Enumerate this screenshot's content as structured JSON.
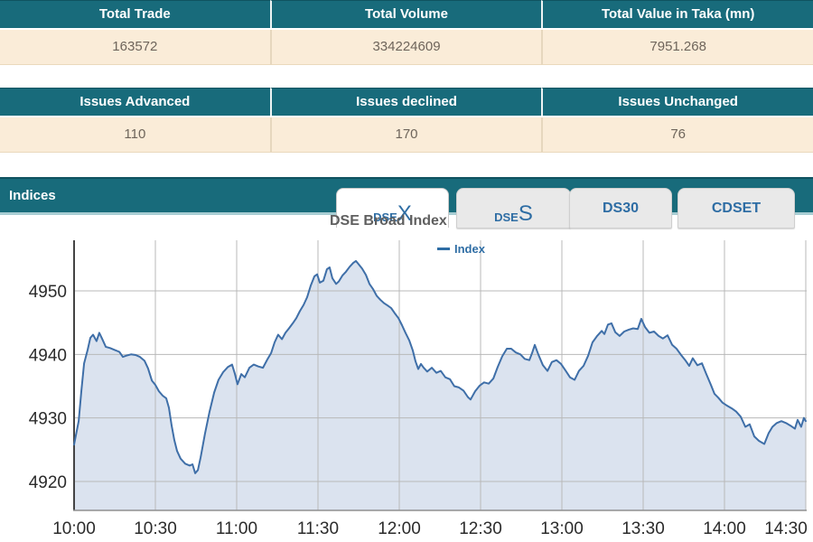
{
  "summary_table": {
    "headers": [
      "Total Trade",
      "Total Volume",
      "Total Value in Taka (mn)"
    ],
    "values": [
      "163572",
      "334224609",
      "7951.268"
    ]
  },
  "issues_table": {
    "headers": [
      "Issues Advanced",
      "Issues declined",
      "Issues Unchanged"
    ],
    "values": [
      "110",
      "170",
      "76"
    ]
  },
  "indices": {
    "title": "Indices",
    "tabs": [
      {
        "prefix": "DSE",
        "suffix": "X",
        "active": true
      },
      {
        "prefix": "DSE",
        "suffix": "S",
        "active": false
      },
      {
        "label": "DS30",
        "active": false
      },
      {
        "label": "CDSET",
        "active": false
      }
    ]
  },
  "chart_data": {
    "type": "area",
    "title": "DSE Broad Index",
    "legend": [
      "Index"
    ],
    "legend_position": "top-center",
    "grid": true,
    "xlabel": "",
    "ylabel": "",
    "x_axis": "time (10:00 - 14:30)",
    "x_ticks": [
      {
        "t": 0,
        "label": "10:00"
      },
      {
        "t": 30,
        "label": "10:30"
      },
      {
        "t": 60,
        "label": "11:00"
      },
      {
        "t": 90,
        "label": "11:30"
      },
      {
        "t": 120,
        "label": "12:00"
      },
      {
        "t": 150,
        "label": "12:30"
      },
      {
        "t": 180,
        "label": "13:00"
      },
      {
        "t": 210,
        "label": "13:30"
      },
      {
        "t": 240,
        "label": "14:00"
      },
      {
        "t": 270,
        "label": "14:30"
      }
    ],
    "y_ticks": [
      4920,
      4930,
      4940,
      4950
    ],
    "ylim": [
      4915.4,
      4958
    ],
    "xlim_minutes": [
      0,
      270
    ],
    "colors": {
      "line": "#3f6fa8",
      "fill": "#dbe3ef",
      "grid": "#b8b8b8",
      "axis_y": "#444444",
      "axis_x": "#909090",
      "tick_text": "#2b2b2b",
      "legend_text": "#2e6da4"
    },
    "series": [
      {
        "name": "Index",
        "points": [
          [
            0,
            4925.8
          ],
          [
            1.7,
            4929.5
          ],
          [
            2.7,
            4934.3
          ],
          [
            3.7,
            4938.6
          ],
          [
            5,
            4940.7
          ],
          [
            6,
            4942.6
          ],
          [
            7,
            4943.1
          ],
          [
            8.3,
            4942.1
          ],
          [
            9.3,
            4943.4
          ],
          [
            10.3,
            4942.5
          ],
          [
            11.7,
            4941.2
          ],
          [
            13.3,
            4941.0
          ],
          [
            15,
            4940.7
          ],
          [
            16.7,
            4940.4
          ],
          [
            18,
            4939.6
          ],
          [
            19.3,
            4939.8
          ],
          [
            21,
            4940.0
          ],
          [
            22.7,
            4939.9
          ],
          [
            24.3,
            4939.6
          ],
          [
            26,
            4939.0
          ],
          [
            27.3,
            4937.8
          ],
          [
            28.7,
            4935.9
          ],
          [
            30,
            4935.2
          ],
          [
            31.3,
            4934.2
          ],
          [
            32.7,
            4933.5
          ],
          [
            34,
            4933.1
          ],
          [
            35,
            4931.6
          ],
          [
            36,
            4928.8
          ],
          [
            37,
            4926.5
          ],
          [
            38,
            4924.8
          ],
          [
            39.3,
            4923.6
          ],
          [
            41,
            4922.8
          ],
          [
            42.7,
            4922.5
          ],
          [
            43.7,
            4922.7
          ],
          [
            44.7,
            4921.3
          ],
          [
            45.7,
            4921.8
          ],
          [
            46.7,
            4923.8
          ],
          [
            48.3,
            4927.5
          ],
          [
            50,
            4931.0
          ],
          [
            51.7,
            4934.0
          ],
          [
            53.3,
            4936.0
          ],
          [
            55,
            4937.2
          ],
          [
            56.7,
            4938.0
          ],
          [
            58.3,
            4938.4
          ],
          [
            59.3,
            4937.0
          ],
          [
            60.3,
            4935.3
          ],
          [
            61.7,
            4936.9
          ],
          [
            63,
            4936.4
          ],
          [
            64.7,
            4937.9
          ],
          [
            66.3,
            4938.4
          ],
          [
            68,
            4938.1
          ],
          [
            69.7,
            4937.9
          ],
          [
            71.3,
            4939.2
          ],
          [
            72.7,
            4940.2
          ],
          [
            74,
            4941.9
          ],
          [
            75.3,
            4943.1
          ],
          [
            76.7,
            4942.4
          ],
          [
            78,
            4943.4
          ],
          [
            79.3,
            4944.1
          ],
          [
            80.7,
            4944.9
          ],
          [
            82,
            4945.7
          ],
          [
            83.3,
            4946.8
          ],
          [
            84.7,
            4947.8
          ],
          [
            86,
            4949.0
          ],
          [
            87.3,
            4950.8
          ],
          [
            88.7,
            4952.3
          ],
          [
            89.7,
            4952.6
          ],
          [
            90.7,
            4951.3
          ],
          [
            92,
            4951.6
          ],
          [
            93.3,
            4953.4
          ],
          [
            94.3,
            4953.7
          ],
          [
            95.3,
            4952.0
          ],
          [
            96.7,
            4951.1
          ],
          [
            97.7,
            4951.5
          ],
          [
            99,
            4952.4
          ],
          [
            100.3,
            4953.0
          ],
          [
            101.7,
            4953.8
          ],
          [
            103,
            4954.4
          ],
          [
            104,
            4954.7
          ],
          [
            105,
            4954.2
          ],
          [
            106.3,
            4953.5
          ],
          [
            107.7,
            4952.5
          ],
          [
            109,
            4951.1
          ],
          [
            110.3,
            4950.3
          ],
          [
            111.7,
            4949.2
          ],
          [
            113,
            4948.6
          ],
          [
            114.3,
            4948.1
          ],
          [
            115.7,
            4947.7
          ],
          [
            117,
            4947.3
          ],
          [
            118.3,
            4946.5
          ],
          [
            119.7,
            4945.7
          ],
          [
            121,
            4944.6
          ],
          [
            122.3,
            4943.4
          ],
          [
            123.7,
            4942.2
          ],
          [
            125,
            4940.6
          ],
          [
            126,
            4938.9
          ],
          [
            127,
            4937.7
          ],
          [
            128,
            4938.5
          ],
          [
            129,
            4937.9
          ],
          [
            130.3,
            4937.3
          ],
          [
            132,
            4937.9
          ],
          [
            133.7,
            4937.1
          ],
          [
            135.3,
            4937.4
          ],
          [
            137,
            4936.4
          ],
          [
            138.7,
            4936.1
          ],
          [
            140.3,
            4935.0
          ],
          [
            142,
            4934.8
          ],
          [
            143.7,
            4934.3
          ],
          [
            145.3,
            4933.3
          ],
          [
            146.3,
            4932.9
          ],
          [
            148,
            4934.2
          ],
          [
            149.7,
            4935.1
          ],
          [
            151.3,
            4935.6
          ],
          [
            153,
            4935.4
          ],
          [
            154.7,
            4936.2
          ],
          [
            156.3,
            4938.0
          ],
          [
            158,
            4939.7
          ],
          [
            159.7,
            4940.9
          ],
          [
            161.3,
            4940.9
          ],
          [
            163,
            4940.3
          ],
          [
            164.7,
            4940.0
          ],
          [
            166.3,
            4939.3
          ],
          [
            168,
            4939.1
          ],
          [
            169,
            4940.2
          ],
          [
            170,
            4941.5
          ],
          [
            171.3,
            4940.0
          ],
          [
            173,
            4938.3
          ],
          [
            174.7,
            4937.4
          ],
          [
            176.3,
            4938.8
          ],
          [
            178,
            4939.1
          ],
          [
            179.7,
            4938.5
          ],
          [
            181.3,
            4937.5
          ],
          [
            183,
            4936.4
          ],
          [
            184.7,
            4936.0
          ],
          [
            186.3,
            4937.4
          ],
          [
            188,
            4938.2
          ],
          [
            189.7,
            4939.8
          ],
          [
            191.3,
            4941.9
          ],
          [
            193,
            4942.9
          ],
          [
            194.7,
            4943.7
          ],
          [
            195.7,
            4943.2
          ],
          [
            197,
            4944.7
          ],
          [
            198.3,
            4944.9
          ],
          [
            199.7,
            4943.5
          ],
          [
            201.3,
            4942.9
          ],
          [
            203,
            4943.6
          ],
          [
            204.7,
            4943.9
          ],
          [
            206.3,
            4944.1
          ],
          [
            208,
            4944.0
          ],
          [
            209.3,
            4945.6
          ],
          [
            210.7,
            4944.3
          ],
          [
            212.3,
            4943.4
          ],
          [
            214,
            4943.6
          ],
          [
            215.7,
            4942.9
          ],
          [
            217.3,
            4942.5
          ],
          [
            219,
            4943.0
          ],
          [
            220.7,
            4941.5
          ],
          [
            222.3,
            4940.9
          ],
          [
            224,
            4939.9
          ],
          [
            225.7,
            4939.0
          ],
          [
            227,
            4938.2
          ],
          [
            228.3,
            4939.4
          ],
          [
            230,
            4938.3
          ],
          [
            231.7,
            4938.6
          ],
          [
            233.3,
            4936.9
          ],
          [
            235,
            4935.2
          ],
          [
            236.3,
            4933.8
          ],
          [
            237.7,
            4933.2
          ],
          [
            239.3,
            4932.4
          ],
          [
            240.7,
            4932.0
          ],
          [
            242.7,
            4931.5
          ],
          [
            244.3,
            4931.0
          ],
          [
            246,
            4930.2
          ],
          [
            247.7,
            4928.6
          ],
          [
            249.3,
            4929.0
          ],
          [
            251,
            4927.1
          ],
          [
            252.7,
            4926.4
          ],
          [
            254.7,
            4925.9
          ],
          [
            256.3,
            4927.6
          ],
          [
            257.7,
            4928.6
          ],
          [
            259.3,
            4929.2
          ],
          [
            261,
            4929.5
          ],
          [
            262.7,
            4929.2
          ],
          [
            264.3,
            4928.8
          ],
          [
            266,
            4928.3
          ],
          [
            267,
            4929.7
          ],
          [
            268.3,
            4928.6
          ],
          [
            269.3,
            4930.0
          ],
          [
            270,
            4929.5
          ]
        ]
      }
    ]
  }
}
